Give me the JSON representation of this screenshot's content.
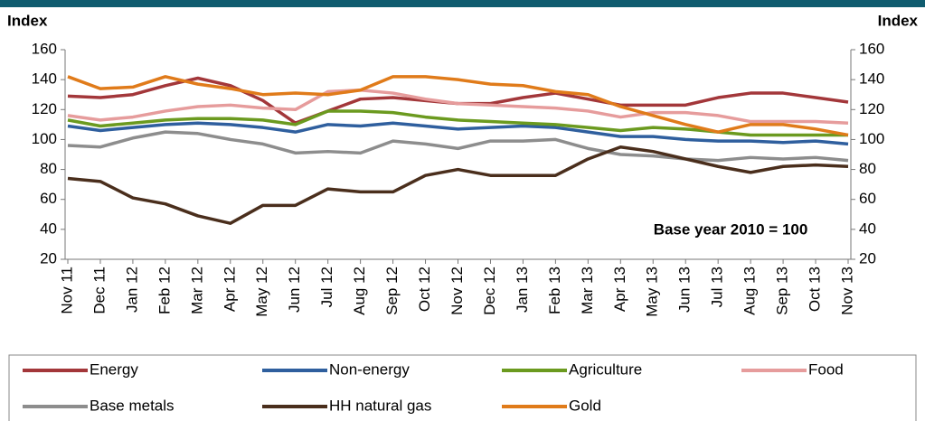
{
  "chart_data": {
    "type": "line",
    "y_label": "Index",
    "y2_label": "Index",
    "annotation": "Base year 2010 = 100",
    "categories": [
      "Nov 11",
      "Dec 11",
      "Jan 12",
      "Feb 12",
      "Mar 12",
      "Apr 12",
      "May 12",
      "Jun 12",
      "Jul 12",
      "Aug 12",
      "Sep 12",
      "Oct 12",
      "Nov 12",
      "Dec 12",
      "Jan 13",
      "Feb 13",
      "Mar 13",
      "Apr 13",
      "May 13",
      "Jun 13",
      "Jul 13",
      "Aug 13",
      "Sep 13",
      "Oct 13",
      "Nov 13"
    ],
    "series": [
      {
        "name": "Energy",
        "color": "#a3373a",
        "values": [
          129,
          128,
          130,
          136,
          141,
          136,
          126,
          111,
          119,
          127,
          128,
          126,
          124,
          124,
          128,
          131,
          127,
          123,
          123,
          123,
          128,
          131,
          131,
          128,
          125
        ]
      },
      {
        "name": "Non-energy",
        "color": "#2f5f9e",
        "values": [
          109,
          106,
          108,
          110,
          111,
          110,
          108,
          105,
          110,
          109,
          111,
          109,
          107,
          108,
          109,
          108,
          105,
          102,
          102,
          100,
          99,
          99,
          98,
          99,
          97
        ]
      },
      {
        "name": "Agriculture",
        "color": "#6b9a1f",
        "values": [
          113,
          109,
          111,
          113,
          114,
          114,
          113,
          110,
          119,
          119,
          118,
          115,
          113,
          112,
          111,
          110,
          108,
          106,
          108,
          107,
          105,
          103,
          103,
          103,
          103
        ]
      },
      {
        "name": "Food",
        "color": "#e69c9c",
        "values": [
          116,
          113,
          115,
          119,
          122,
          123,
          121,
          120,
          132,
          133,
          131,
          127,
          124,
          123,
          122,
          121,
          119,
          115,
          118,
          118,
          116,
          112,
          112,
          112,
          111
        ]
      },
      {
        "name": "Base metals",
        "color": "#8d8d8d",
        "values": [
          96,
          95,
          101,
          105,
          104,
          100,
          97,
          91,
          92,
          91,
          99,
          97,
          94,
          99,
          99,
          100,
          94,
          90,
          89,
          87,
          86,
          88,
          87,
          88,
          86
        ]
      },
      {
        "name": "HH natural gas",
        "color": "#4a2e1c",
        "values": [
          74,
          72,
          61,
          57,
          49,
          44,
          56,
          56,
          67,
          65,
          65,
          76,
          80,
          76,
          76,
          76,
          87,
          95,
          92,
          87,
          82,
          78,
          82,
          83,
          82
        ]
      },
      {
        "name": "Gold",
        "color": "#e07b1a",
        "values": [
          142,
          134,
          135,
          142,
          137,
          134,
          130,
          131,
          130,
          133,
          142,
          142,
          140,
          137,
          136,
          132,
          130,
          122,
          116,
          110,
          105,
          110,
          110,
          107,
          103
        ]
      }
    ],
    "ylim": [
      20,
      160
    ],
    "yticks": [
      20,
      40,
      60,
      80,
      100,
      120,
      140,
      160
    ],
    "y2lim": [
      20,
      160
    ],
    "y2ticks": [
      20,
      40,
      60,
      80,
      100,
      120,
      140,
      160
    ]
  }
}
